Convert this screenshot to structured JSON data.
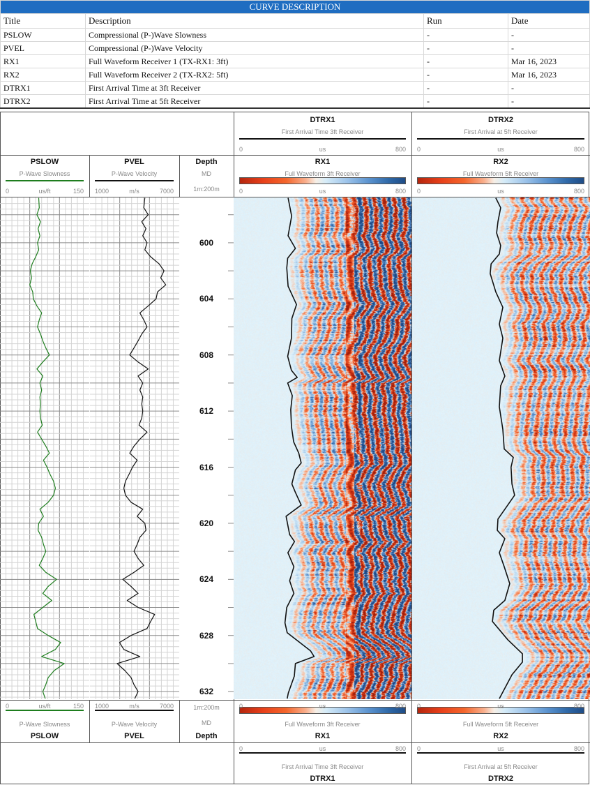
{
  "curve_description": {
    "title": "CURVE DESCRIPTION",
    "headers": [
      "Title",
      "Description",
      "Run",
      "Date"
    ],
    "rows": [
      [
        "PSLOW",
        "Compressional (P-)Wave Slowness",
        "-",
        "-"
      ],
      [
        "PVEL",
        "Compressional (P-)Wave Velocity",
        "-",
        "-"
      ],
      [
        "RX1",
        "Full Waveform Receiver 1 (TX-RX1: 3ft)",
        "-",
        "Mar 16, 2023"
      ],
      [
        "RX2",
        "Full Waveform Receiver 2 (TX-RX2: 5ft)",
        "-",
        "Mar 16, 2023"
      ],
      [
        "DTRX1",
        "First Arrival Time at 3ft Receiver",
        "-",
        "-"
      ],
      [
        "DTRX2",
        "First Arrival Time at 5ft Receiver",
        "-",
        "-"
      ]
    ]
  },
  "tracks": {
    "pslow": {
      "name": "PSLOW",
      "desc": "P-Wave Slowness",
      "min": "0",
      "unit": "us/ft",
      "max": "150",
      "color": "#1e7d1e"
    },
    "pvel": {
      "name": "PVEL",
      "desc": "P-Wave Velocity",
      "min": "1000",
      "unit": "m/s",
      "max": "7000",
      "color": "#111111"
    },
    "depth": {
      "name": "Depth",
      "ref": "MD",
      "scale": "1m:200m"
    },
    "rx1": {
      "name": "RX1",
      "desc": "Full Waveform 3ft Receiver",
      "min": "0",
      "unit": "us",
      "max": "800",
      "colormap": [
        "#b5260e",
        "#e8401a",
        "#f9b08e",
        "#f7efe6",
        "#d6ecf8",
        "#5b93cf",
        "#1f4c86"
      ]
    },
    "rx2": {
      "name": "RX2",
      "desc": "Full Waveform 5ft Receiver",
      "min": "0",
      "unit": "us",
      "max": "800",
      "colormap": [
        "#b5260e",
        "#e8401a",
        "#f9b08e",
        "#f7efe6",
        "#d6ecf8",
        "#5b93cf",
        "#1f4c86"
      ]
    },
    "dtrx1": {
      "name": "DTRX1",
      "desc": "First Arrival Time 3ft Receiver",
      "min": "0",
      "unit": "us",
      "max": "800",
      "color": "#111111"
    },
    "dtrx2": {
      "name": "DTRX2",
      "desc": "First Arrival at 5ft Receiver",
      "min": "0",
      "unit": "us",
      "max": "800",
      "color": "#111111"
    }
  },
  "chart_data": {
    "type": "line",
    "depth_axis": {
      "label": "Depth",
      "reference": "MD",
      "range": [
        596.8,
        632.5
      ],
      "tick_labels": [
        "600",
        "604",
        "608",
        "612",
        "616",
        "620",
        "624",
        "628",
        "632"
      ]
    },
    "grid": true,
    "series": [
      {
        "name": "PSLOW",
        "unit": "us/ft",
        "xlim": [
          0,
          150
        ],
        "depth": [
          596.8,
          597.5,
          598,
          598.5,
          599,
          599.5,
          600,
          600.5,
          601,
          601.5,
          602,
          602.5,
          603,
          603.5,
          604,
          604.5,
          605,
          605.5,
          606,
          606.5,
          607,
          607.5,
          608,
          608.5,
          609,
          609.5,
          610,
          610.5,
          611,
          611.5,
          612,
          612.5,
          613,
          613.5,
          614,
          614.5,
          615,
          615.5,
          616,
          616.5,
          617,
          617.5,
          618,
          618.5,
          619,
          619.5,
          620,
          620.5,
          621,
          621.5,
          622,
          622.5,
          623,
          623.5,
          624,
          624.5,
          625,
          625.5,
          626,
          626.5,
          627,
          627.5,
          628,
          628.5,
          629,
          629.5,
          630,
          630.5,
          631,
          631.5,
          632,
          632.5
        ],
        "values": [
          65,
          66,
          62,
          68,
          64,
          67,
          63,
          65,
          60,
          54,
          51,
          53,
          50,
          55,
          56,
          62,
          70,
          66,
          63,
          68,
          72,
          77,
          83,
          72,
          62,
          72,
          67,
          70,
          67,
          68,
          67,
          68,
          71,
          63,
          70,
          77,
          83,
          73,
          79,
          84,
          90,
          93,
          90,
          81,
          67,
          73,
          65,
          64,
          70,
          73,
          77,
          72,
          66,
          77,
          95,
          81,
          72,
          87,
          72,
          57,
          60,
          63,
          81,
          102,
          93,
          70,
          108,
          91,
          81,
          77,
          72,
          76
        ]
      },
      {
        "name": "PVEL",
        "unit": "m/s",
        "xlim": [
          1000,
          7000
        ],
        "depth": [
          596.8,
          597.5,
          598,
          598.5,
          599,
          599.5,
          600,
          600.5,
          601,
          601.5,
          602,
          602.5,
          603,
          603.5,
          604,
          604.5,
          605,
          605.5,
          606,
          606.5,
          607,
          607.5,
          608,
          608.5,
          609,
          609.5,
          610,
          610.5,
          611,
          611.5,
          612,
          612.5,
          613,
          613.5,
          614,
          614.5,
          615,
          615.5,
          616,
          616.5,
          617,
          617.5,
          618,
          618.5,
          619,
          619.5,
          620,
          620.5,
          621,
          621.5,
          622,
          622.5,
          623,
          623.5,
          624,
          624.5,
          625,
          625.5,
          626,
          626.5,
          627,
          627.5,
          628,
          628.5,
          629,
          629.5,
          630,
          630.5,
          631,
          631.5,
          632,
          632.5
        ],
        "values": [
          4689,
          4618,
          4916,
          4482,
          4763,
          4549,
          4838,
          4689,
          5080,
          5644,
          5976,
          5751,
          6096,
          5542,
          5443,
          4916,
          4354,
          4618,
          4838,
          4482,
          4233,
          3958,
          3672,
          4233,
          4916,
          4233,
          4549,
          4354,
          4549,
          4482,
          4549,
          4482,
          4293,
          4838,
          4354,
          3958,
          3672,
          4175,
          3858,
          3629,
          3387,
          3277,
          3387,
          3763,
          4549,
          4175,
          4689,
          4763,
          4354,
          4175,
          3958,
          4233,
          4618,
          3958,
          3208,
          3763,
          4233,
          3503,
          4233,
          5347,
          5080,
          4838,
          3763,
          2988,
          3277,
          4354,
          2822,
          3349,
          3763,
          3958,
          4233,
          4011
        ]
      },
      {
        "name": "DTRX1",
        "unit": "us",
        "xlim": [
          0,
          800
        ],
        "depth": [
          596.8,
          598.1,
          599.5,
          600.4,
          601.1,
          601.8,
          603.1,
          604.4,
          605.4,
          606.8,
          608.1,
          609.1,
          609.6,
          610,
          610.9,
          611.9,
          613.1,
          614.2,
          615,
          615.7,
          616.2,
          617.2,
          617.8,
          618.7,
          619.5,
          620.8,
          621.3,
          622.1,
          623.1,
          624.1,
          625,
          626,
          627.1,
          627.8,
          629.1,
          629.5,
          630,
          630.9,
          632.1,
          632.5
        ],
        "values": [
          245,
          261,
          245,
          278,
          243,
          239,
          245,
          283,
          262,
          260,
          243,
          260,
          286,
          243,
          264,
          257,
          260,
          270,
          293,
          304,
          278,
          262,
          278,
          304,
          236,
          252,
          274,
          244,
          271,
          252,
          271,
          239,
          231,
          241,
          346,
          362,
          278,
          273,
          246,
          241
        ]
      },
      {
        "name": "DTRX2",
        "unit": "us",
        "xlim": [
          0,
          800
        ],
        "depth": [
          596.8,
          597.5,
          598.5,
          599.3,
          600.2,
          600.8,
          601.5,
          602.2,
          603.5,
          604.6,
          605.8,
          606.8,
          608.4,
          609.5,
          610.2,
          611.7,
          613.3,
          614.7,
          615.3,
          616,
          617.2,
          618,
          619,
          619.7,
          620.5,
          621.1,
          622.1,
          623.1,
          624.3,
          625.5,
          626.2,
          627,
          628.3,
          629.3,
          629.9,
          630.8,
          632.5
        ],
        "values": [
          376,
          398,
          386,
          380,
          398,
          392,
          355,
          351,
          376,
          408,
          392,
          408,
          392,
          417,
          398,
          392,
          408,
          414,
          455,
          445,
          449,
          461,
          417,
          386,
          383,
          417,
          392,
          414,
          439,
          417,
          367,
          361,
          430,
          496,
          496,
          449,
          392
        ]
      }
    ]
  }
}
